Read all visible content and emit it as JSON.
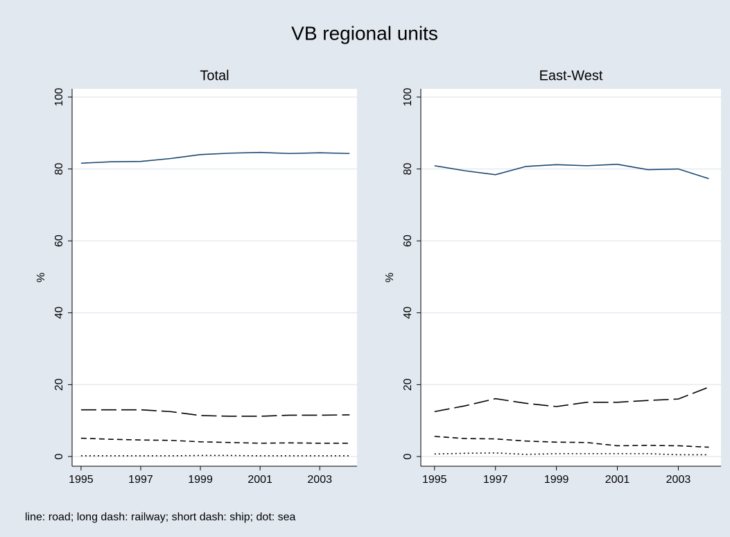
{
  "title": "VB regional units",
  "note": "line: road; long dash: railway; short dash: ship; dot: sea",
  "chart_data": [
    {
      "type": "line",
      "subtitle": "Total",
      "ylabel": "%",
      "x": [
        1995,
        1996,
        1997,
        1998,
        1999,
        2000,
        2001,
        2002,
        2003,
        2004
      ],
      "xlim": [
        1994.7,
        2004.25
      ],
      "xticks": [
        1995,
        1997,
        1999,
        2001,
        2003
      ],
      "ylim": [
        -2.7,
        102.3
      ],
      "yticks": [
        0,
        20,
        40,
        60,
        80,
        100
      ],
      "grid": true,
      "series": [
        {
          "color": "#1a476f",
          "dash": "solid",
          "values": [
            81.6,
            82.0,
            82.1,
            82.9,
            84.0,
            84.4,
            84.6,
            84.3,
            84.5,
            84.3
          ]
        },
        {
          "color": "#000000",
          "dash": "long",
          "values": [
            13.0,
            13.0,
            13.0,
            12.5,
            11.4,
            11.2,
            11.2,
            11.5,
            11.5,
            11.6
          ]
        },
        {
          "color": "#000000",
          "dash": "short",
          "values": [
            5.1,
            4.8,
            4.6,
            4.5,
            4.1,
            3.9,
            3.7,
            3.8,
            3.7,
            3.7
          ]
        },
        {
          "color": "#000000",
          "dash": "dot",
          "values": [
            0.2,
            0.2,
            0.2,
            0.2,
            0.3,
            0.3,
            0.2,
            0.2,
            0.2,
            0.2
          ]
        }
      ]
    },
    {
      "type": "line",
      "subtitle": "East-West",
      "ylabel": "%",
      "x": [
        1995,
        1996,
        1997,
        1998,
        1999,
        2000,
        2001,
        2002,
        2003,
        2004
      ],
      "xlim": [
        1994.55,
        2004.4
      ],
      "xticks": [
        1995,
        1997,
        1999,
        2001,
        2003
      ],
      "ylim": [
        -2.7,
        102.3
      ],
      "yticks": [
        0,
        20,
        40,
        60,
        80,
        100
      ],
      "grid": true,
      "series": [
        {
          "color": "#1a476f",
          "dash": "solid",
          "values": [
            80.9,
            79.5,
            78.4,
            80.7,
            81.2,
            80.9,
            81.3,
            79.8,
            80.0,
            77.3
          ]
        },
        {
          "color": "#000000",
          "dash": "long",
          "values": [
            12.5,
            14.1,
            16.1,
            14.8,
            13.9,
            15.1,
            15.1,
            15.6,
            16.0,
            19.3
          ]
        },
        {
          "color": "#000000",
          "dash": "short",
          "values": [
            5.6,
            5.0,
            4.9,
            4.3,
            4.0,
            3.9,
            3.0,
            3.1,
            3.0,
            2.6
          ]
        },
        {
          "color": "#000000",
          "dash": "dot",
          "values": [
            0.7,
            0.9,
            1.0,
            0.6,
            0.8,
            0.8,
            0.8,
            0.8,
            0.5,
            0.5
          ]
        }
      ]
    }
  ]
}
